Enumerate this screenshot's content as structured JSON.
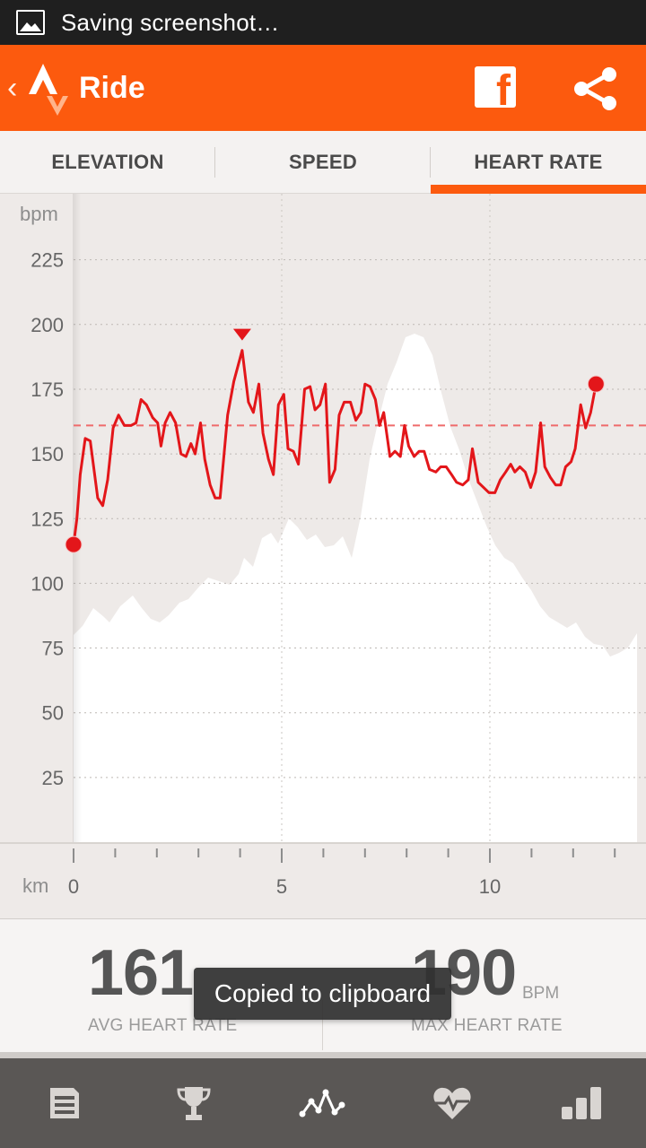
{
  "status_bar": {
    "notification_text": "Saving screenshot…",
    "icon": "image-icon"
  },
  "app_bar": {
    "title": "Ride",
    "accent_color": "#fc5a0e",
    "icons": [
      "back-chevron-icon",
      "strava-logo-icon",
      "facebook-icon",
      "share-icon"
    ]
  },
  "tabs": [
    {
      "label": "ELEVATION",
      "active": false
    },
    {
      "label": "SPEED",
      "active": false
    },
    {
      "label": "HEART RATE",
      "active": true
    }
  ],
  "chart_data": {
    "type": "line",
    "ylabel": "bpm",
    "xlabel": "km",
    "ylim": [
      0,
      250
    ],
    "xlim": [
      0,
      13.6
    ],
    "y_ticks": [
      "225",
      "200",
      "175",
      "150",
      "125",
      "100",
      "75",
      "50",
      "25"
    ],
    "x_ticks": [
      "0",
      "5",
      "10"
    ],
    "average_line": 161,
    "max_marker": {
      "x": 4.05,
      "y": 190
    },
    "line_color": "#e3161a",
    "series": [
      {
        "values": [
          [
            0,
            115
          ],
          [
            0.08,
            125
          ],
          [
            0.16,
            142
          ],
          [
            0.28,
            156
          ],
          [
            0.4,
            155
          ],
          [
            0.58,
            133
          ],
          [
            0.7,
            130
          ],
          [
            0.82,
            140
          ],
          [
            0.95,
            160
          ],
          [
            1.08,
            165
          ],
          [
            1.22,
            161
          ],
          [
            1.38,
            161
          ],
          [
            1.5,
            162
          ],
          [
            1.62,
            171
          ],
          [
            1.75,
            169
          ],
          [
            1.9,
            164
          ],
          [
            2.02,
            162
          ],
          [
            2.1,
            153
          ],
          [
            2.2,
            162
          ],
          [
            2.32,
            166
          ],
          [
            2.45,
            162
          ],
          [
            2.58,
            150
          ],
          [
            2.7,
            149
          ],
          [
            2.82,
            154
          ],
          [
            2.92,
            150
          ],
          [
            3.05,
            162
          ],
          [
            3.15,
            148
          ],
          [
            3.28,
            138
          ],
          [
            3.4,
            133
          ],
          [
            3.52,
            133
          ],
          [
            3.7,
            165
          ],
          [
            3.85,
            178
          ],
          [
            4.05,
            190
          ],
          [
            4.2,
            170
          ],
          [
            4.32,
            166
          ],
          [
            4.45,
            177
          ],
          [
            4.55,
            158
          ],
          [
            4.68,
            148
          ],
          [
            4.8,
            142
          ],
          [
            4.92,
            169
          ],
          [
            5.05,
            173
          ],
          [
            5.15,
            152
          ],
          [
            5.28,
            151
          ],
          [
            5.4,
            146
          ],
          [
            5.55,
            175
          ],
          [
            5.68,
            176
          ],
          [
            5.8,
            167
          ],
          [
            5.92,
            169
          ],
          [
            6.05,
            177
          ],
          [
            6.15,
            139
          ],
          [
            6.28,
            144
          ],
          [
            6.38,
            165
          ],
          [
            6.5,
            170
          ],
          [
            6.65,
            170
          ],
          [
            6.78,
            163
          ],
          [
            6.9,
            166
          ],
          [
            7.0,
            177
          ],
          [
            7.12,
            176
          ],
          [
            7.25,
            171
          ],
          [
            7.35,
            161
          ],
          [
            7.45,
            166
          ],
          [
            7.6,
            149
          ],
          [
            7.72,
            151
          ],
          [
            7.85,
            149
          ],
          [
            7.95,
            161
          ],
          [
            8.05,
            153
          ],
          [
            8.18,
            149
          ],
          [
            8.3,
            151
          ],
          [
            8.42,
            151
          ],
          [
            8.55,
            144
          ],
          [
            8.7,
            143
          ],
          [
            8.82,
            145
          ],
          [
            8.95,
            145
          ],
          [
            9.08,
            142
          ],
          [
            9.2,
            139
          ],
          [
            9.35,
            138
          ],
          [
            9.48,
            140
          ],
          [
            9.58,
            152
          ],
          [
            9.72,
            139
          ],
          [
            9.85,
            137
          ],
          [
            9.98,
            135
          ],
          [
            10.12,
            135
          ],
          [
            10.25,
            140
          ],
          [
            10.38,
            143
          ],
          [
            10.5,
            146
          ],
          [
            10.6,
            143
          ],
          [
            10.72,
            145
          ],
          [
            10.85,
            143
          ],
          [
            10.98,
            137
          ],
          [
            11.1,
            143
          ],
          [
            11.22,
            162
          ],
          [
            11.32,
            145
          ],
          [
            11.45,
            141
          ],
          [
            11.58,
            138
          ],
          [
            11.7,
            138
          ],
          [
            11.82,
            145
          ],
          [
            11.95,
            147
          ],
          [
            12.05,
            152
          ],
          [
            12.18,
            169
          ],
          [
            12.3,
            160
          ],
          [
            12.42,
            166
          ],
          [
            12.55,
            177
          ]
        ]
      }
    ]
  },
  "stats": {
    "avg_value": "161",
    "avg_label": "AVG HEART RATE",
    "max_value": "190",
    "max_unit": "BPM",
    "max_label": "MAX HEART RATE"
  },
  "toast": {
    "text": "Copied to clipboard"
  },
  "bottom_nav": [
    {
      "icon": "feed-icon",
      "active": false
    },
    {
      "icon": "trophy-icon",
      "active": false
    },
    {
      "icon": "analysis-icon",
      "active": true
    },
    {
      "icon": "heart-rate-icon",
      "active": false
    },
    {
      "icon": "stats-icon",
      "active": false
    }
  ]
}
